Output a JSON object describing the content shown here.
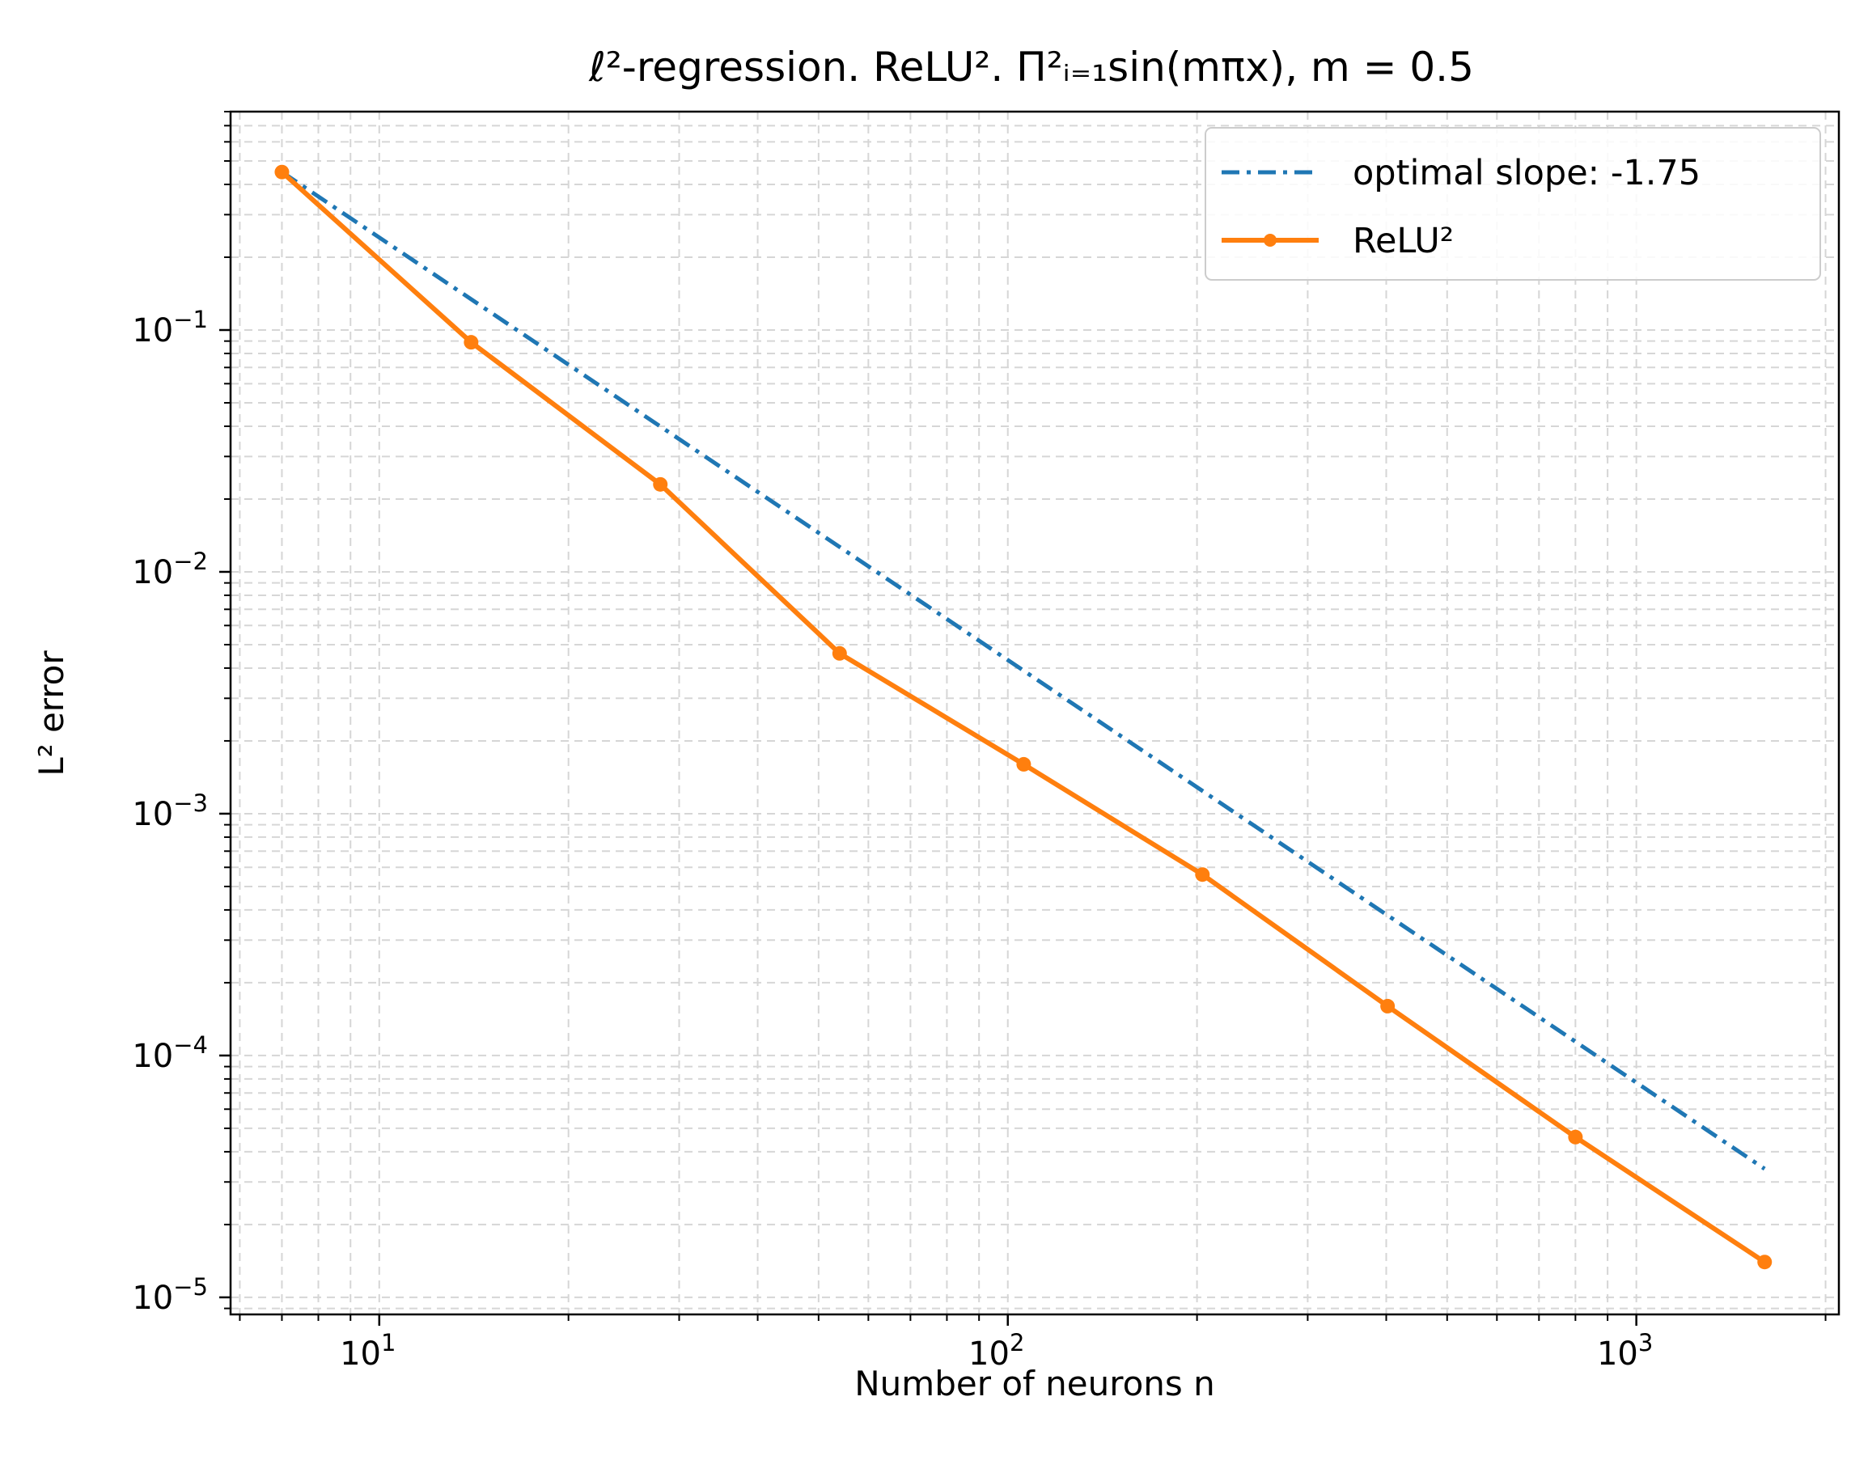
{
  "chart_data": {
    "type": "line",
    "title": "ℓ²-regression. ReLU². Π²ᵢ₌₁sin(mπx), m = 0.5",
    "xlabel": "Number of neurons n",
    "ylabel": "L² error",
    "xscale": "log",
    "yscale": "log",
    "xlim": [
      5.8,
      2100
    ],
    "ylim": [
      8.5e-06,
      0.8
    ],
    "grid": true,
    "legend_position": "top-right",
    "x_ticks": [
      {
        "value": 10,
        "base": "10",
        "exp": "1"
      },
      {
        "value": 100,
        "base": "10",
        "exp": "2"
      },
      {
        "value": 1000,
        "base": "10",
        "exp": "3"
      }
    ],
    "y_ticks": [
      {
        "value": 0.1,
        "base": "10",
        "exp": "−1"
      },
      {
        "value": 0.01,
        "base": "10",
        "exp": "−2"
      },
      {
        "value": 0.001,
        "base": "10",
        "exp": "−3"
      },
      {
        "value": 0.0001,
        "base": "10",
        "exp": "−4"
      },
      {
        "value": 1e-05,
        "base": "10",
        "exp": "−5"
      }
    ],
    "series": [
      {
        "name": "optimal slope: -1.75",
        "style": "dashdot",
        "color": "#1f77b4",
        "x": [
          7,
          1600
        ],
        "y": [
          0.45,
          3.4e-05
        ]
      },
      {
        "name": "ReLU²",
        "style": "solid-marker",
        "color": "#ff7f0e",
        "x": [
          7,
          14,
          28,
          54,
          106,
          204,
          402,
          800,
          1600
        ],
        "y": [
          0.45,
          0.089,
          0.023,
          0.0046,
          0.0016,
          0.00056,
          0.00016,
          4.6e-05,
          1.4e-05
        ]
      }
    ]
  }
}
